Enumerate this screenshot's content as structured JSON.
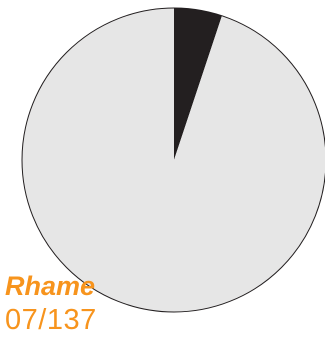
{
  "chart_data": {
    "type": "pie",
    "title": "",
    "slices": [
      {
        "value": 7,
        "color": "#231f20"
      },
      {
        "value": 130,
        "color": "#e6e6e6"
      }
    ],
    "total": 137
  },
  "label": {
    "name": "Rhame",
    "ratio": "07/137"
  },
  "colors": {
    "accent": "#f7941d",
    "stroke": "#231f20"
  }
}
